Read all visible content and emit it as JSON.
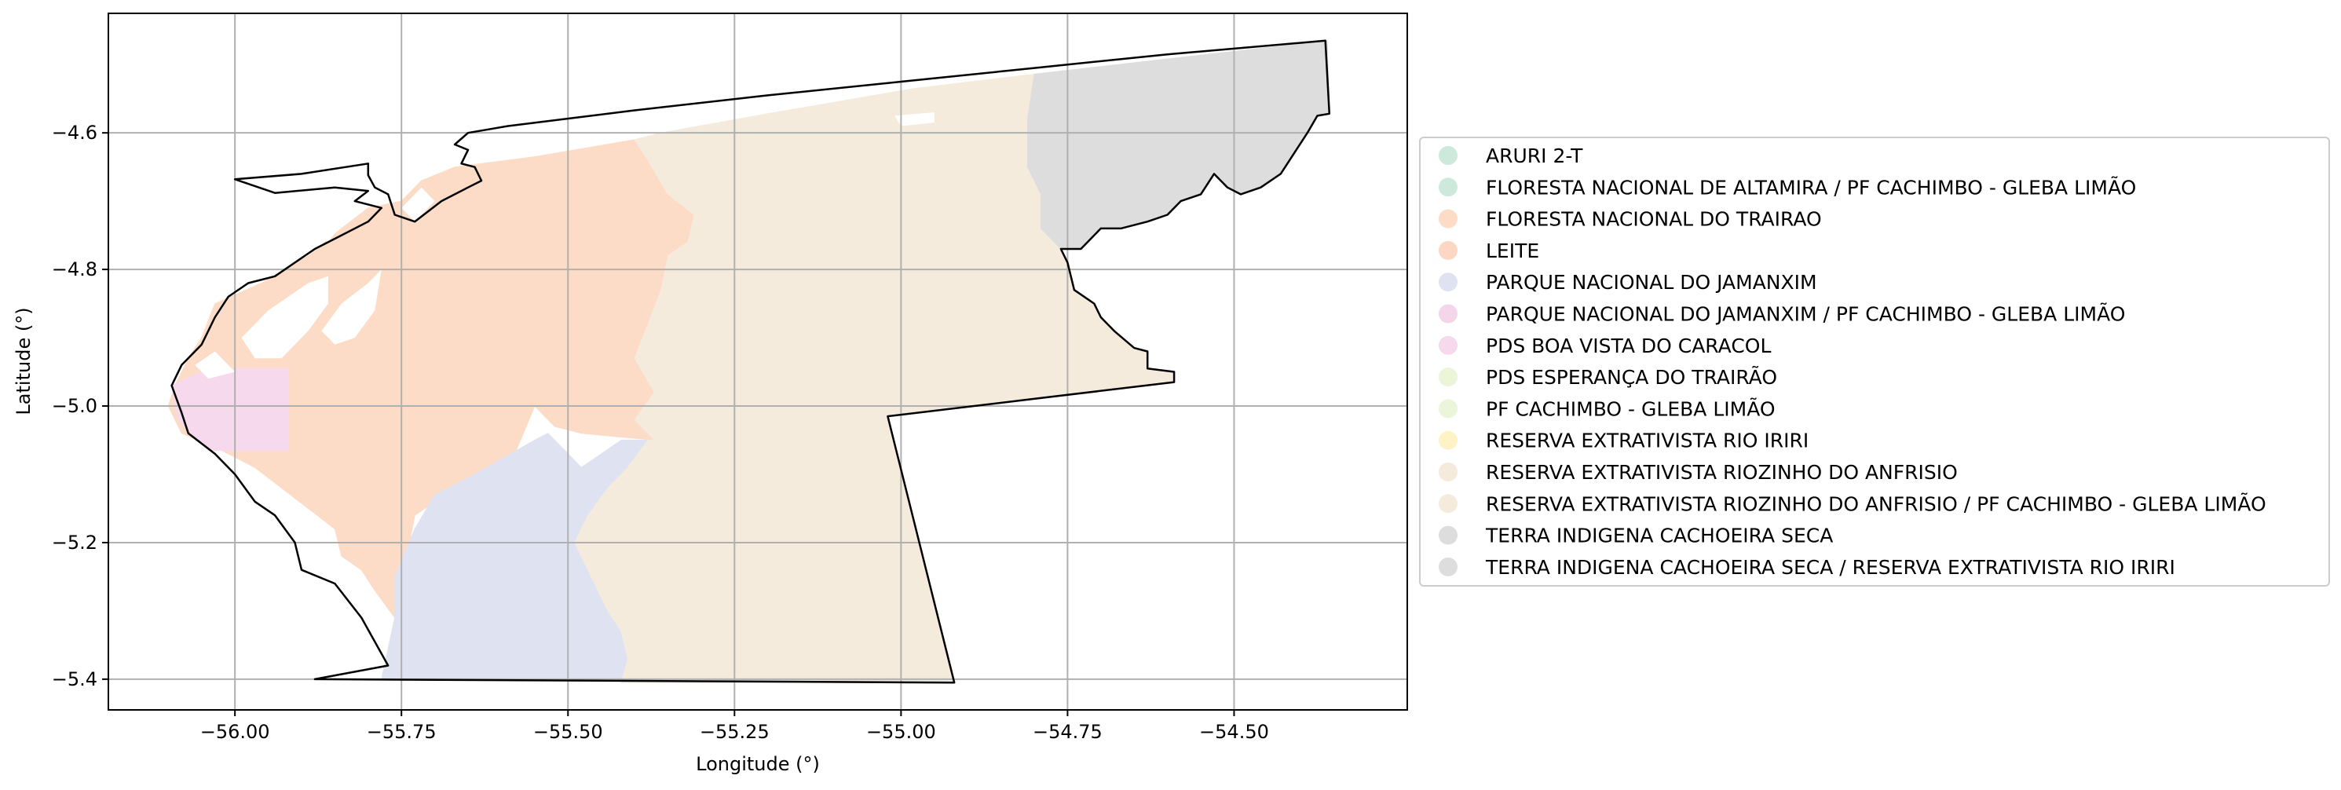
{
  "chart_data": {
    "type": "map",
    "xlabel": "Longitude (°)",
    "ylabel": "Latitude (°)",
    "xlim": [
      -56.19,
      -54.24
    ],
    "ylim": [
      -5.445,
      -4.425
    ],
    "x_ticks": [
      {
        "value": -56.0,
        "label": "−56.00"
      },
      {
        "value": -55.75,
        "label": "−55.75"
      },
      {
        "value": -55.5,
        "label": "−55.50"
      },
      {
        "value": -55.25,
        "label": "−55.25"
      },
      {
        "value": -55.0,
        "label": "−55.00"
      },
      {
        "value": -54.75,
        "label": "−54.75"
      },
      {
        "value": -54.5,
        "label": "−54.50"
      }
    ],
    "y_ticks": [
      {
        "value": -4.6,
        "label": "−4.6"
      },
      {
        "value": -4.8,
        "label": "−4.8"
      },
      {
        "value": -5.0,
        "label": "−5.0"
      },
      {
        "value": -5.2,
        "label": "−5.2"
      },
      {
        "value": -5.4,
        "label": "−5.4"
      }
    ],
    "grid": true,
    "legend_placement": "right",
    "legend": [
      {
        "label": "ARURI 2-T",
        "color": "#cce9dc"
      },
      {
        "label": "FLORESTA NACIONAL DE ALTAMIRA / PF CACHIMBO - GLEBA LIMÃO",
        "color": "#cce9dc"
      },
      {
        "label": "FLORESTA NACIONAL DO TRAIRAO",
        "color": "#fcdcc6"
      },
      {
        "label": "LEITE",
        "color": "#fcd7c3"
      },
      {
        "label": "PARQUE NACIONAL DO JAMANXIM",
        "color": "#dfe3f1"
      },
      {
        "label": "PARQUE NACIONAL DO JAMANXIM / PF CACHIMBO - GLEBA LIMÃO",
        "color": "#f4d6ea"
      },
      {
        "label": "PDS BOA VISTA DO CARACOL",
        "color": "#f6d9ec"
      },
      {
        "label": "PDS ESPERANÇA DO TRAIRÃO",
        "color": "#eaf5da"
      },
      {
        "label": "PF CACHIMBO - GLEBA LIMÃO",
        "color": "#eaf5da"
      },
      {
        "label": "RESERVA EXTRATIVISTA RIO IRIRI",
        "color": "#fdf3c5"
      },
      {
        "label": "RESERVA EXTRATIVISTA RIOZINHO DO ANFRISIO",
        "color": "#f4ebdd"
      },
      {
        "label": "RESERVA EXTRATIVISTA RIOZINHO DO ANFRISIO / PF CACHIMBO - GLEBA LIMÃO",
        "color": "#f4ebdd"
      },
      {
        "label": "TERRA INDIGENA CACHOEIRA SECA",
        "color": "#dddddd"
      },
      {
        "label": "TERRA INDIGENA CACHOEIRA SECA / RESERVA EXTRATIVISTA RIO IRIRI",
        "color": "#dddddd"
      }
    ],
    "regions": [
      {
        "name": "FLORESTA NACIONAL DO TRAIRAO",
        "color": "#fcdcc6",
        "polygon": [
          [
            -56.09,
            -4.97
          ],
          [
            -56.07,
            -4.93
          ],
          [
            -56.05,
            -4.9
          ],
          [
            -56.03,
            -4.85
          ],
          [
            -55.96,
            -4.82
          ],
          [
            -55.89,
            -4.78
          ],
          [
            -55.84,
            -4.74
          ],
          [
            -55.8,
            -4.71
          ],
          [
            -55.75,
            -4.7
          ],
          [
            -55.72,
            -4.67
          ],
          [
            -55.67,
            -4.65
          ],
          [
            -55.55,
            -4.635
          ],
          [
            -55.4,
            -4.61
          ],
          [
            -55.36,
            -4.6
          ],
          [
            -55.38,
            -4.64
          ],
          [
            -55.35,
            -4.69
          ],
          [
            -55.31,
            -4.72
          ],
          [
            -55.32,
            -4.76
          ],
          [
            -55.35,
            -4.78
          ],
          [
            -55.36,
            -4.83
          ],
          [
            -55.38,
            -4.88
          ],
          [
            -55.4,
            -4.93
          ],
          [
            -55.37,
            -4.98
          ],
          [
            -55.4,
            -5.02
          ],
          [
            -55.37,
            -5.05
          ],
          [
            -55.48,
            -5.04
          ],
          [
            -55.52,
            -5.03
          ],
          [
            -55.55,
            -5.0
          ],
          [
            -55.58,
            -5.07
          ],
          [
            -55.67,
            -5.12
          ],
          [
            -55.73,
            -5.16
          ],
          [
            -55.75,
            -5.26
          ],
          [
            -55.76,
            -5.31
          ],
          [
            -55.79,
            -5.27
          ],
          [
            -55.81,
            -5.24
          ],
          [
            -55.84,
            -5.22
          ],
          [
            -55.85,
            -5.18
          ],
          [
            -55.89,
            -5.15
          ],
          [
            -55.93,
            -5.12
          ],
          [
            -55.97,
            -5.09
          ],
          [
            -56.03,
            -5.06
          ],
          [
            -56.08,
            -5.04
          ],
          [
            -56.1,
            -5.0
          ]
        ]
      },
      {
        "name": "PARQUE NACIONAL DO JAMANXIM",
        "color": "#dfe3f1",
        "polygon": [
          [
            -55.76,
            -5.31
          ],
          [
            -55.76,
            -5.25
          ],
          [
            -55.73,
            -5.18
          ],
          [
            -55.7,
            -5.13
          ],
          [
            -55.64,
            -5.1
          ],
          [
            -55.55,
            -5.05
          ],
          [
            -55.53,
            -5.04
          ],
          [
            -55.5,
            -5.07
          ],
          [
            -55.48,
            -5.09
          ],
          [
            -55.45,
            -5.07
          ],
          [
            -55.42,
            -5.05
          ],
          [
            -55.38,
            -5.05
          ],
          [
            -55.41,
            -5.09
          ],
          [
            -55.44,
            -5.12
          ],
          [
            -55.47,
            -5.16
          ],
          [
            -55.49,
            -5.2
          ],
          [
            -55.46,
            -5.26
          ],
          [
            -55.44,
            -5.3
          ],
          [
            -55.42,
            -5.33
          ],
          [
            -55.41,
            -5.37
          ],
          [
            -55.42,
            -5.4
          ],
          [
            -55.78,
            -5.4
          ]
        ]
      },
      {
        "name": "PDS BOA VISTA DO CARACOL",
        "color": "#f6d9ec",
        "polygon": [
          [
            -56.095,
            -4.97
          ],
          [
            -56.04,
            -4.945
          ],
          [
            -55.92,
            -4.945
          ],
          [
            -55.92,
            -5.065
          ],
          [
            -56.04,
            -5.065
          ],
          [
            -56.085,
            -5.02
          ]
        ]
      },
      {
        "name": "RESERVA EXTRATIVISTA RIOZINHO DO ANFRISIO",
        "color": "#f4ebdd",
        "polygon": [
          [
            -55.4,
            -4.61
          ],
          [
            -55.36,
            -4.6
          ],
          [
            -55.2,
            -4.572
          ],
          [
            -54.98,
            -4.535
          ],
          [
            -54.8,
            -4.514
          ],
          [
            -54.81,
            -4.58
          ],
          [
            -54.81,
            -4.65
          ],
          [
            -54.79,
            -4.69
          ],
          [
            -54.79,
            -4.74
          ],
          [
            -54.76,
            -4.77
          ],
          [
            -54.75,
            -4.79
          ],
          [
            -54.74,
            -4.83
          ],
          [
            -54.71,
            -4.85
          ],
          [
            -54.7,
            -4.87
          ],
          [
            -54.68,
            -4.89
          ],
          [
            -54.65,
            -4.915
          ],
          [
            -54.63,
            -4.92
          ],
          [
            -54.63,
            -4.945
          ],
          [
            -54.59,
            -4.95
          ],
          [
            -54.59,
            -4.965
          ],
          [
            -55.02,
            -5.015
          ],
          [
            -54.92,
            -5.405
          ],
          [
            -55.42,
            -5.405
          ],
          [
            -55.41,
            -5.37
          ],
          [
            -55.42,
            -5.33
          ],
          [
            -55.44,
            -5.3
          ],
          [
            -55.46,
            -5.26
          ],
          [
            -55.49,
            -5.2
          ],
          [
            -55.47,
            -5.16
          ],
          [
            -55.44,
            -5.12
          ],
          [
            -55.41,
            -5.09
          ],
          [
            -55.38,
            -5.05
          ],
          [
            -55.37,
            -5.05
          ],
          [
            -55.4,
            -5.02
          ],
          [
            -55.37,
            -4.98
          ],
          [
            -55.4,
            -4.93
          ],
          [
            -55.38,
            -4.88
          ],
          [
            -55.36,
            -4.83
          ],
          [
            -55.35,
            -4.78
          ],
          [
            -55.32,
            -4.76
          ],
          [
            -55.31,
            -4.72
          ],
          [
            -55.35,
            -4.69
          ],
          [
            -55.38,
            -4.64
          ]
        ]
      },
      {
        "name": "TERRA INDIGENA CACHOEIRA SECA",
        "color": "#dddddd",
        "polygon": [
          [
            -54.8,
            -4.514
          ],
          [
            -54.36,
            -4.465
          ],
          [
            -54.357,
            -4.572
          ],
          [
            -54.375,
            -4.575
          ],
          [
            -54.39,
            -4.6
          ],
          [
            -54.41,
            -4.63
          ],
          [
            -54.43,
            -4.66
          ],
          [
            -54.46,
            -4.68
          ],
          [
            -54.49,
            -4.69
          ],
          [
            -54.51,
            -4.68
          ],
          [
            -54.53,
            -4.66
          ],
          [
            -54.55,
            -4.69
          ],
          [
            -54.58,
            -4.7
          ],
          [
            -54.6,
            -4.72
          ],
          [
            -54.63,
            -4.73
          ],
          [
            -54.67,
            -4.74
          ],
          [
            -54.7,
            -4.74
          ],
          [
            -54.73,
            -4.77
          ],
          [
            -54.76,
            -4.77
          ],
          [
            -54.79,
            -4.74
          ],
          [
            -54.79,
            -4.69
          ],
          [
            -54.81,
            -4.65
          ],
          [
            -54.81,
            -4.58
          ]
        ]
      }
    ],
    "holes": [
      {
        "polygon": [
          [
            -55.99,
            -4.9
          ],
          [
            -55.95,
            -4.86
          ],
          [
            -55.89,
            -4.82
          ],
          [
            -55.86,
            -4.81
          ],
          [
            -55.86,
            -4.85
          ],
          [
            -55.89,
            -4.89
          ],
          [
            -55.93,
            -4.93
          ],
          [
            -55.97,
            -4.93
          ]
        ]
      },
      {
        "polygon": [
          [
            -55.84,
            -4.85
          ],
          [
            -55.8,
            -4.82
          ],
          [
            -55.78,
            -4.8
          ],
          [
            -55.79,
            -4.86
          ],
          [
            -55.82,
            -4.9
          ],
          [
            -55.85,
            -4.91
          ],
          [
            -55.87,
            -4.89
          ]
        ]
      },
      {
        "polygon": [
          [
            -56.06,
            -4.94
          ],
          [
            -56.03,
            -4.92
          ],
          [
            -56.0,
            -4.95
          ],
          [
            -56.04,
            -4.96
          ]
        ]
      },
      {
        "polygon": [
          [
            -55.9,
            -4.73
          ],
          [
            -55.86,
            -4.7
          ],
          [
            -55.83,
            -4.72
          ],
          [
            -55.86,
            -4.76
          ]
        ]
      },
      {
        "polygon": [
          [
            -55.75,
            -4.71
          ],
          [
            -55.72,
            -4.68
          ],
          [
            -55.7,
            -4.7
          ],
          [
            -55.73,
            -4.73
          ]
        ]
      },
      {
        "polygon": [
          [
            -55.01,
            -4.575
          ],
          [
            -54.95,
            -4.57
          ],
          [
            -54.95,
            -4.585
          ],
          [
            -55.0,
            -4.59
          ]
        ]
      }
    ],
    "outline": [
      [
        -55.88,
        -5.4
      ],
      [
        -55.77,
        -5.38
      ],
      [
        -55.81,
        -5.31
      ],
      [
        -55.85,
        -5.26
      ],
      [
        -55.9,
        -5.24
      ],
      [
        -55.91,
        -5.2
      ],
      [
        -55.94,
        -5.16
      ],
      [
        -55.97,
        -5.14
      ],
      [
        -56.0,
        -5.1
      ],
      [
        -56.03,
        -5.07
      ],
      [
        -56.07,
        -5.04
      ],
      [
        -56.08,
        -5.01
      ],
      [
        -56.095,
        -4.97
      ],
      [
        -56.08,
        -4.94
      ],
      [
        -56.05,
        -4.91
      ],
      [
        -56.03,
        -4.87
      ],
      [
        -56.01,
        -4.84
      ],
      [
        -55.98,
        -4.82
      ],
      [
        -55.94,
        -4.81
      ],
      [
        -55.91,
        -4.79
      ],
      [
        -55.88,
        -4.77
      ],
      [
        -55.84,
        -4.75
      ],
      [
        -55.8,
        -4.73
      ],
      [
        -55.78,
        -4.71
      ],
      [
        -55.82,
        -4.7
      ],
      [
        -55.8,
        -4.685
      ],
      [
        -55.85,
        -4.68
      ],
      [
        -55.94,
        -4.688
      ],
      [
        -56.0,
        -4.668
      ],
      [
        -55.9,
        -4.66
      ],
      [
        -55.8,
        -4.645
      ],
      [
        -55.8,
        -4.662
      ],
      [
        -55.79,
        -4.68
      ],
      [
        -55.77,
        -4.69
      ],
      [
        -55.76,
        -4.72
      ],
      [
        -55.73,
        -4.73
      ],
      [
        -55.71,
        -4.715
      ],
      [
        -55.69,
        -4.7
      ],
      [
        -55.67,
        -4.69
      ],
      [
        -55.65,
        -4.68
      ],
      [
        -55.63,
        -4.67
      ],
      [
        -55.64,
        -4.65
      ],
      [
        -55.66,
        -4.645
      ],
      [
        -55.65,
        -4.625
      ],
      [
        -55.67,
        -4.617
      ],
      [
        -55.65,
        -4.6
      ],
      [
        -55.59,
        -4.59
      ],
      [
        -55.4,
        -4.567
      ],
      [
        -55.2,
        -4.545
      ],
      [
        -55.0,
        -4.525
      ],
      [
        -54.8,
        -4.505
      ],
      [
        -54.6,
        -4.485
      ],
      [
        -54.363,
        -4.465
      ],
      [
        -54.357,
        -4.572
      ],
      [
        -54.375,
        -4.575
      ],
      [
        -54.39,
        -4.6
      ],
      [
        -54.41,
        -4.63
      ],
      [
        -54.43,
        -4.66
      ],
      [
        -54.46,
        -4.68
      ],
      [
        -54.49,
        -4.69
      ],
      [
        -54.51,
        -4.68
      ],
      [
        -54.53,
        -4.66
      ],
      [
        -54.55,
        -4.69
      ],
      [
        -54.58,
        -4.7
      ],
      [
        -54.6,
        -4.72
      ],
      [
        -54.63,
        -4.73
      ],
      [
        -54.67,
        -4.74
      ],
      [
        -54.7,
        -4.74
      ],
      [
        -54.73,
        -4.77
      ],
      [
        -54.76,
        -4.77
      ],
      [
        -54.75,
        -4.79
      ],
      [
        -54.74,
        -4.83
      ],
      [
        -54.71,
        -4.85
      ],
      [
        -54.7,
        -4.87
      ],
      [
        -54.68,
        -4.89
      ],
      [
        -54.65,
        -4.915
      ],
      [
        -54.63,
        -4.92
      ],
      [
        -54.63,
        -4.945
      ],
      [
        -54.59,
        -4.95
      ],
      [
        -54.59,
        -4.965
      ],
      [
        -55.02,
        -5.015
      ],
      [
        -54.92,
        -5.405
      ],
      [
        -55.88,
        -5.4
      ]
    ]
  }
}
